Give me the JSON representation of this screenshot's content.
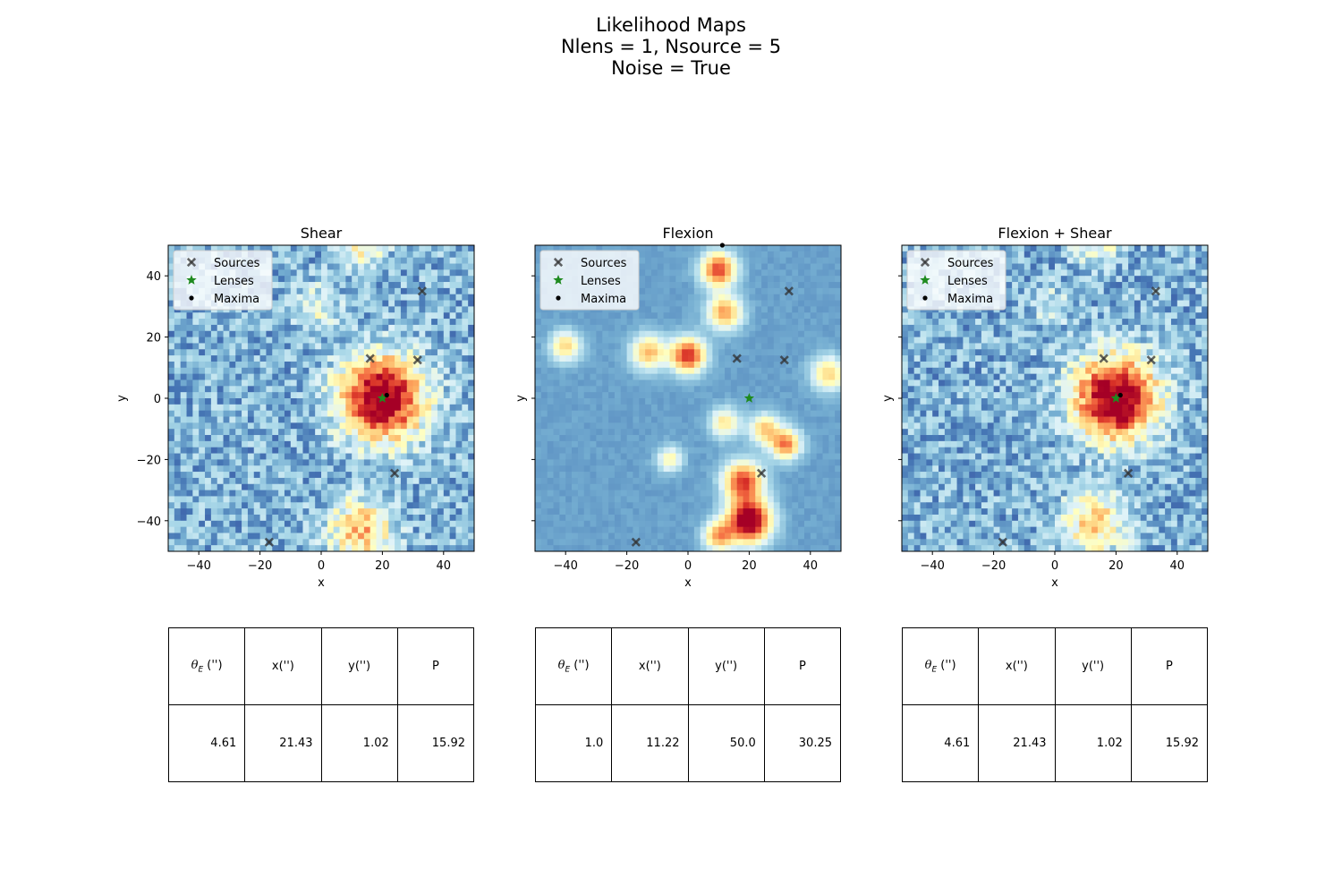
{
  "figure": {
    "title_lines": [
      "Likelihood Maps",
      "Nlens = 1, Nsource = 5",
      "Noise = True"
    ]
  },
  "legend": [
    "Sources",
    "Lenses",
    "Maxima"
  ],
  "chart_data": [
    {
      "type": "heatmap",
      "title": "Shear",
      "xlabel": "x",
      "ylabel": "y",
      "xlim": [
        -50,
        50
      ],
      "ylim": [
        -50,
        50
      ],
      "xticks": [
        -40,
        -20,
        0,
        20,
        40
      ],
      "yticks": [
        40,
        20,
        0,
        -20,
        -40
      ],
      "colormap": "RdYlBu_r",
      "noise": 0.28,
      "background": 0.22,
      "blobs": [
        {
          "x": 20,
          "y": 0,
          "amp": 0.9,
          "sigma": 9.5
        },
        {
          "x": 13,
          "y": -43,
          "amp": 0.45,
          "sigma": 7
        },
        {
          "x": -1,
          "y": 30,
          "amp": 0.22,
          "sigma": 5
        },
        {
          "x": 14,
          "y": 51,
          "amp": 0.35,
          "sigma": 5
        }
      ],
      "sources": [
        [
          16,
          13
        ],
        [
          31.5,
          12.5
        ],
        [
          33,
          35
        ],
        [
          24,
          -24.5
        ],
        [
          -17,
          -47
        ]
      ],
      "lenses": [
        [
          20,
          0
        ]
      ],
      "maxima": [
        [
          21.43,
          1.02
        ]
      ],
      "table": {
        "headers": [
          "θ_E ('')",
          "x('')",
          "y('')",
          "P"
        ],
        "values": [
          "4.61",
          "21.43",
          "1.02",
          "15.92"
        ]
      }
    },
    {
      "type": "heatmap",
      "title": "Flexion",
      "xlabel": "x",
      "ylabel": "y",
      "xlim": [
        -50,
        50
      ],
      "ylim": [
        -50,
        50
      ],
      "xticks": [
        -40,
        -20,
        0,
        20,
        40
      ],
      "yticks": [
        40,
        20,
        0,
        -20,
        -40
      ],
      "colormap": "RdYlBu_r",
      "noise": 0.0,
      "background": 0.18,
      "blobs": [
        {
          "x": 10,
          "y": 42,
          "amp": 0.7,
          "sigma": 4
        },
        {
          "x": 12,
          "y": 28,
          "amp": 0.55,
          "sigma": 4
        },
        {
          "x": 0,
          "y": 14,
          "amp": 0.75,
          "sigma": 4
        },
        {
          "x": -13,
          "y": 15,
          "amp": 0.5,
          "sigma": 4
        },
        {
          "x": -40,
          "y": 17,
          "amp": 0.45,
          "sigma": 3.5
        },
        {
          "x": 20,
          "y": -40,
          "amp": 0.95,
          "sigma": 5
        },
        {
          "x": 18,
          "y": -27,
          "amp": 0.7,
          "sigma": 4.5
        },
        {
          "x": 32,
          "y": -15,
          "amp": 0.6,
          "sigma": 3.5
        },
        {
          "x": 25,
          "y": -10,
          "amp": 0.45,
          "sigma": 3.5
        },
        {
          "x": 46,
          "y": 8,
          "amp": 0.45,
          "sigma": 4
        },
        {
          "x": 12,
          "y": -8,
          "amp": 0.4,
          "sigma": 3.5
        },
        {
          "x": 10,
          "y": -45,
          "amp": 0.5,
          "sigma": 3.5
        },
        {
          "x": -6,
          "y": -20,
          "amp": 0.35,
          "sigma": 3
        }
      ],
      "sources": [
        [
          16,
          13
        ],
        [
          31.5,
          12.5
        ],
        [
          33,
          35
        ],
        [
          24,
          -24.5
        ],
        [
          -17,
          -47
        ]
      ],
      "lenses": [
        [
          20,
          0
        ]
      ],
      "maxima": [
        [
          11.22,
          50.0
        ]
      ],
      "table": {
        "headers": [
          "θ_E ('')",
          "x('')",
          "y('')",
          "P"
        ],
        "values": [
          "1.0",
          "11.22",
          "50.0",
          "30.25"
        ]
      }
    },
    {
      "type": "heatmap",
      "title": "Flexion + Shear",
      "xlabel": "x",
      "ylabel": "y",
      "xlim": [
        -50,
        50
      ],
      "ylim": [
        -50,
        50
      ],
      "xticks": [
        -40,
        -20,
        0,
        20,
        40
      ],
      "yticks": [
        40,
        20,
        0,
        -20,
        -40
      ],
      "colormap": "RdYlBu_r",
      "noise": 0.28,
      "background": 0.22,
      "blobs": [
        {
          "x": 20,
          "y": 0,
          "amp": 0.9,
          "sigma": 9.5
        },
        {
          "x": 13,
          "y": -41,
          "amp": 0.42,
          "sigma": 7
        },
        {
          "x": -1,
          "y": 30,
          "amp": 0.18,
          "sigma": 4
        },
        {
          "x": 14,
          "y": 51,
          "amp": 0.3,
          "sigma": 5
        }
      ],
      "sources": [
        [
          16,
          13
        ],
        [
          31.5,
          12.5
        ],
        [
          33,
          35
        ],
        [
          24,
          -24.5
        ],
        [
          -17,
          -47
        ]
      ],
      "lenses": [
        [
          20,
          0
        ]
      ],
      "maxima": [
        [
          21.43,
          1.02
        ]
      ],
      "table": {
        "headers": [
          "θ_E ('')",
          "x('')",
          "y('')",
          "P"
        ],
        "values": [
          "4.61",
          "21.43",
          "1.02",
          "15.92"
        ]
      }
    }
  ]
}
